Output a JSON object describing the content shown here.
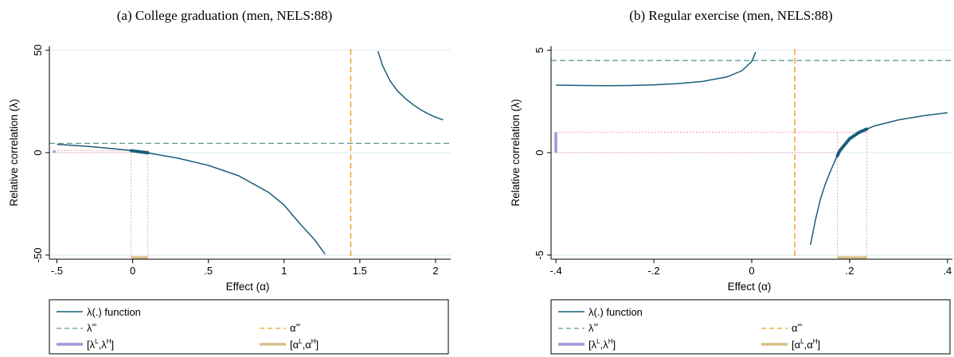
{
  "chart_data": [
    {
      "type": "line",
      "title": "(a) College graduation (men, NELS:88)",
      "xlabel": "Effect (α)",
      "ylabel": "Relative correlation (λ)",
      "xlim": [
        -0.55,
        2.1
      ],
      "ylim": [
        -52,
        52
      ],
      "xticks": [
        -0.5,
        0,
        0.5,
        1,
        1.5,
        2
      ],
      "xtick_labels": [
        "-.5",
        "0",
        ".5",
        "1",
        "1.5",
        "2"
      ],
      "yticks": [
        50,
        0,
        -50
      ],
      "ytick_labels": [
        "50",
        "0",
        "-50"
      ],
      "grid": "horizontal",
      "lambda_inf": 4.5,
      "alpha_inf": 1.44,
      "lambda_interval": [
        0,
        1
      ],
      "alpha_interval": [
        -0.01,
        0.1
      ],
      "series": [
        {
          "name": "λ(.) function",
          "segments": [
            {
              "x": [
                -0.5,
                -0.3,
                -0.1,
                0,
                0.1,
                0.3,
                0.5,
                0.7,
                0.9,
                1.0,
                1.1,
                1.2,
                1.27
              ],
              "y": [
                4.05,
                3.1,
                1.75,
                0.9,
                -0.1,
                -2.7,
                -6.2,
                -11.3,
                -19.5,
                -25.6,
                -34.3,
                -42.4,
                -49.5
              ]
            },
            {
              "x": [
                1.62,
                1.65,
                1.7,
                1.75,
                1.8,
                1.85,
                1.9,
                1.95,
                2.0,
                2.05
              ],
              "y": [
                49.5,
                42.5,
                35.0,
                30.0,
                26.5,
                23.5,
                21.0,
                19.0,
                17.3,
                16.0
              ]
            }
          ]
        },
        {
          "name": "λ∞",
          "value": 4.5
        },
        {
          "name": "α∞",
          "value": 1.44
        }
      ]
    },
    {
      "type": "line",
      "title": "(b) Regular exercise (men, NELS:88)",
      "xlabel": "Effect (α)",
      "ylabel": "Relative correlation (λ)",
      "xlim": [
        -0.41,
        0.41
      ],
      "ylim": [
        -5.2,
        5.2
      ],
      "xticks": [
        -0.4,
        -0.2,
        0,
        0.2,
        0.4
      ],
      "xtick_labels": [
        "-.4",
        "-.2",
        "0",
        ".2",
        ".4"
      ],
      "yticks": [
        5,
        0,
        -5
      ],
      "ytick_labels": [
        "5",
        "0",
        "-5"
      ],
      "grid": "horizontal",
      "lambda_inf": 4.5,
      "alpha_inf": 0.088,
      "lambda_interval": [
        0,
        1
      ],
      "alpha_interval": [
        0.175,
        0.235
      ],
      "series": [
        {
          "name": "λ(.) function",
          "segments": [
            {
              "x": [
                -0.4,
                -0.35,
                -0.3,
                -0.25,
                -0.2,
                -0.15,
                -0.1,
                -0.05,
                -0.02,
                0,
                0.008
              ],
              "y": [
                3.3,
                3.28,
                3.27,
                3.28,
                3.31,
                3.37,
                3.48,
                3.7,
                4.0,
                4.45,
                4.9
              ]
            },
            {
              "x": [
                0.12,
                0.13,
                0.14,
                0.15,
                0.16,
                0.17,
                0.18,
                0.2,
                0.22,
                0.25,
                0.3,
                0.35,
                0.4
              ],
              "y": [
                -4.5,
                -3.3,
                -2.3,
                -1.55,
                -0.95,
                -0.4,
                0.1,
                0.68,
                1.0,
                1.3,
                1.6,
                1.8,
                1.95
              ]
            }
          ]
        },
        {
          "name": "λ∞",
          "value": 4.5
        },
        {
          "name": "α∞",
          "value": 0.088
        }
      ]
    }
  ],
  "legend": {
    "line_label": "λ(.) function",
    "lambda_inf_base": "λ",
    "lambda_inf_sup": "∞",
    "alpha_inf_base": "α",
    "alpha_inf_sup": "∞",
    "lambda_interval": {
      "open": "[",
      "a": "λ",
      "a_sup": "L",
      "sep": ",",
      "b": "λ",
      "b_sup": "H",
      "close": "]"
    },
    "alpha_interval": {
      "open": "[",
      "a": "α",
      "a_sup": "L",
      "sep": ",",
      "b": "α",
      "b_sup": "H",
      "close": "]"
    }
  },
  "colors": {
    "curve": "#1a5e7a",
    "lambda_inf": "#5f9c95",
    "alpha_inf": "#f0a030",
    "lambda_band": "#9a9ad6",
    "alpha_band": "#d8c08a",
    "guide": "#f2a0b8",
    "grid": "#d8ecec"
  }
}
